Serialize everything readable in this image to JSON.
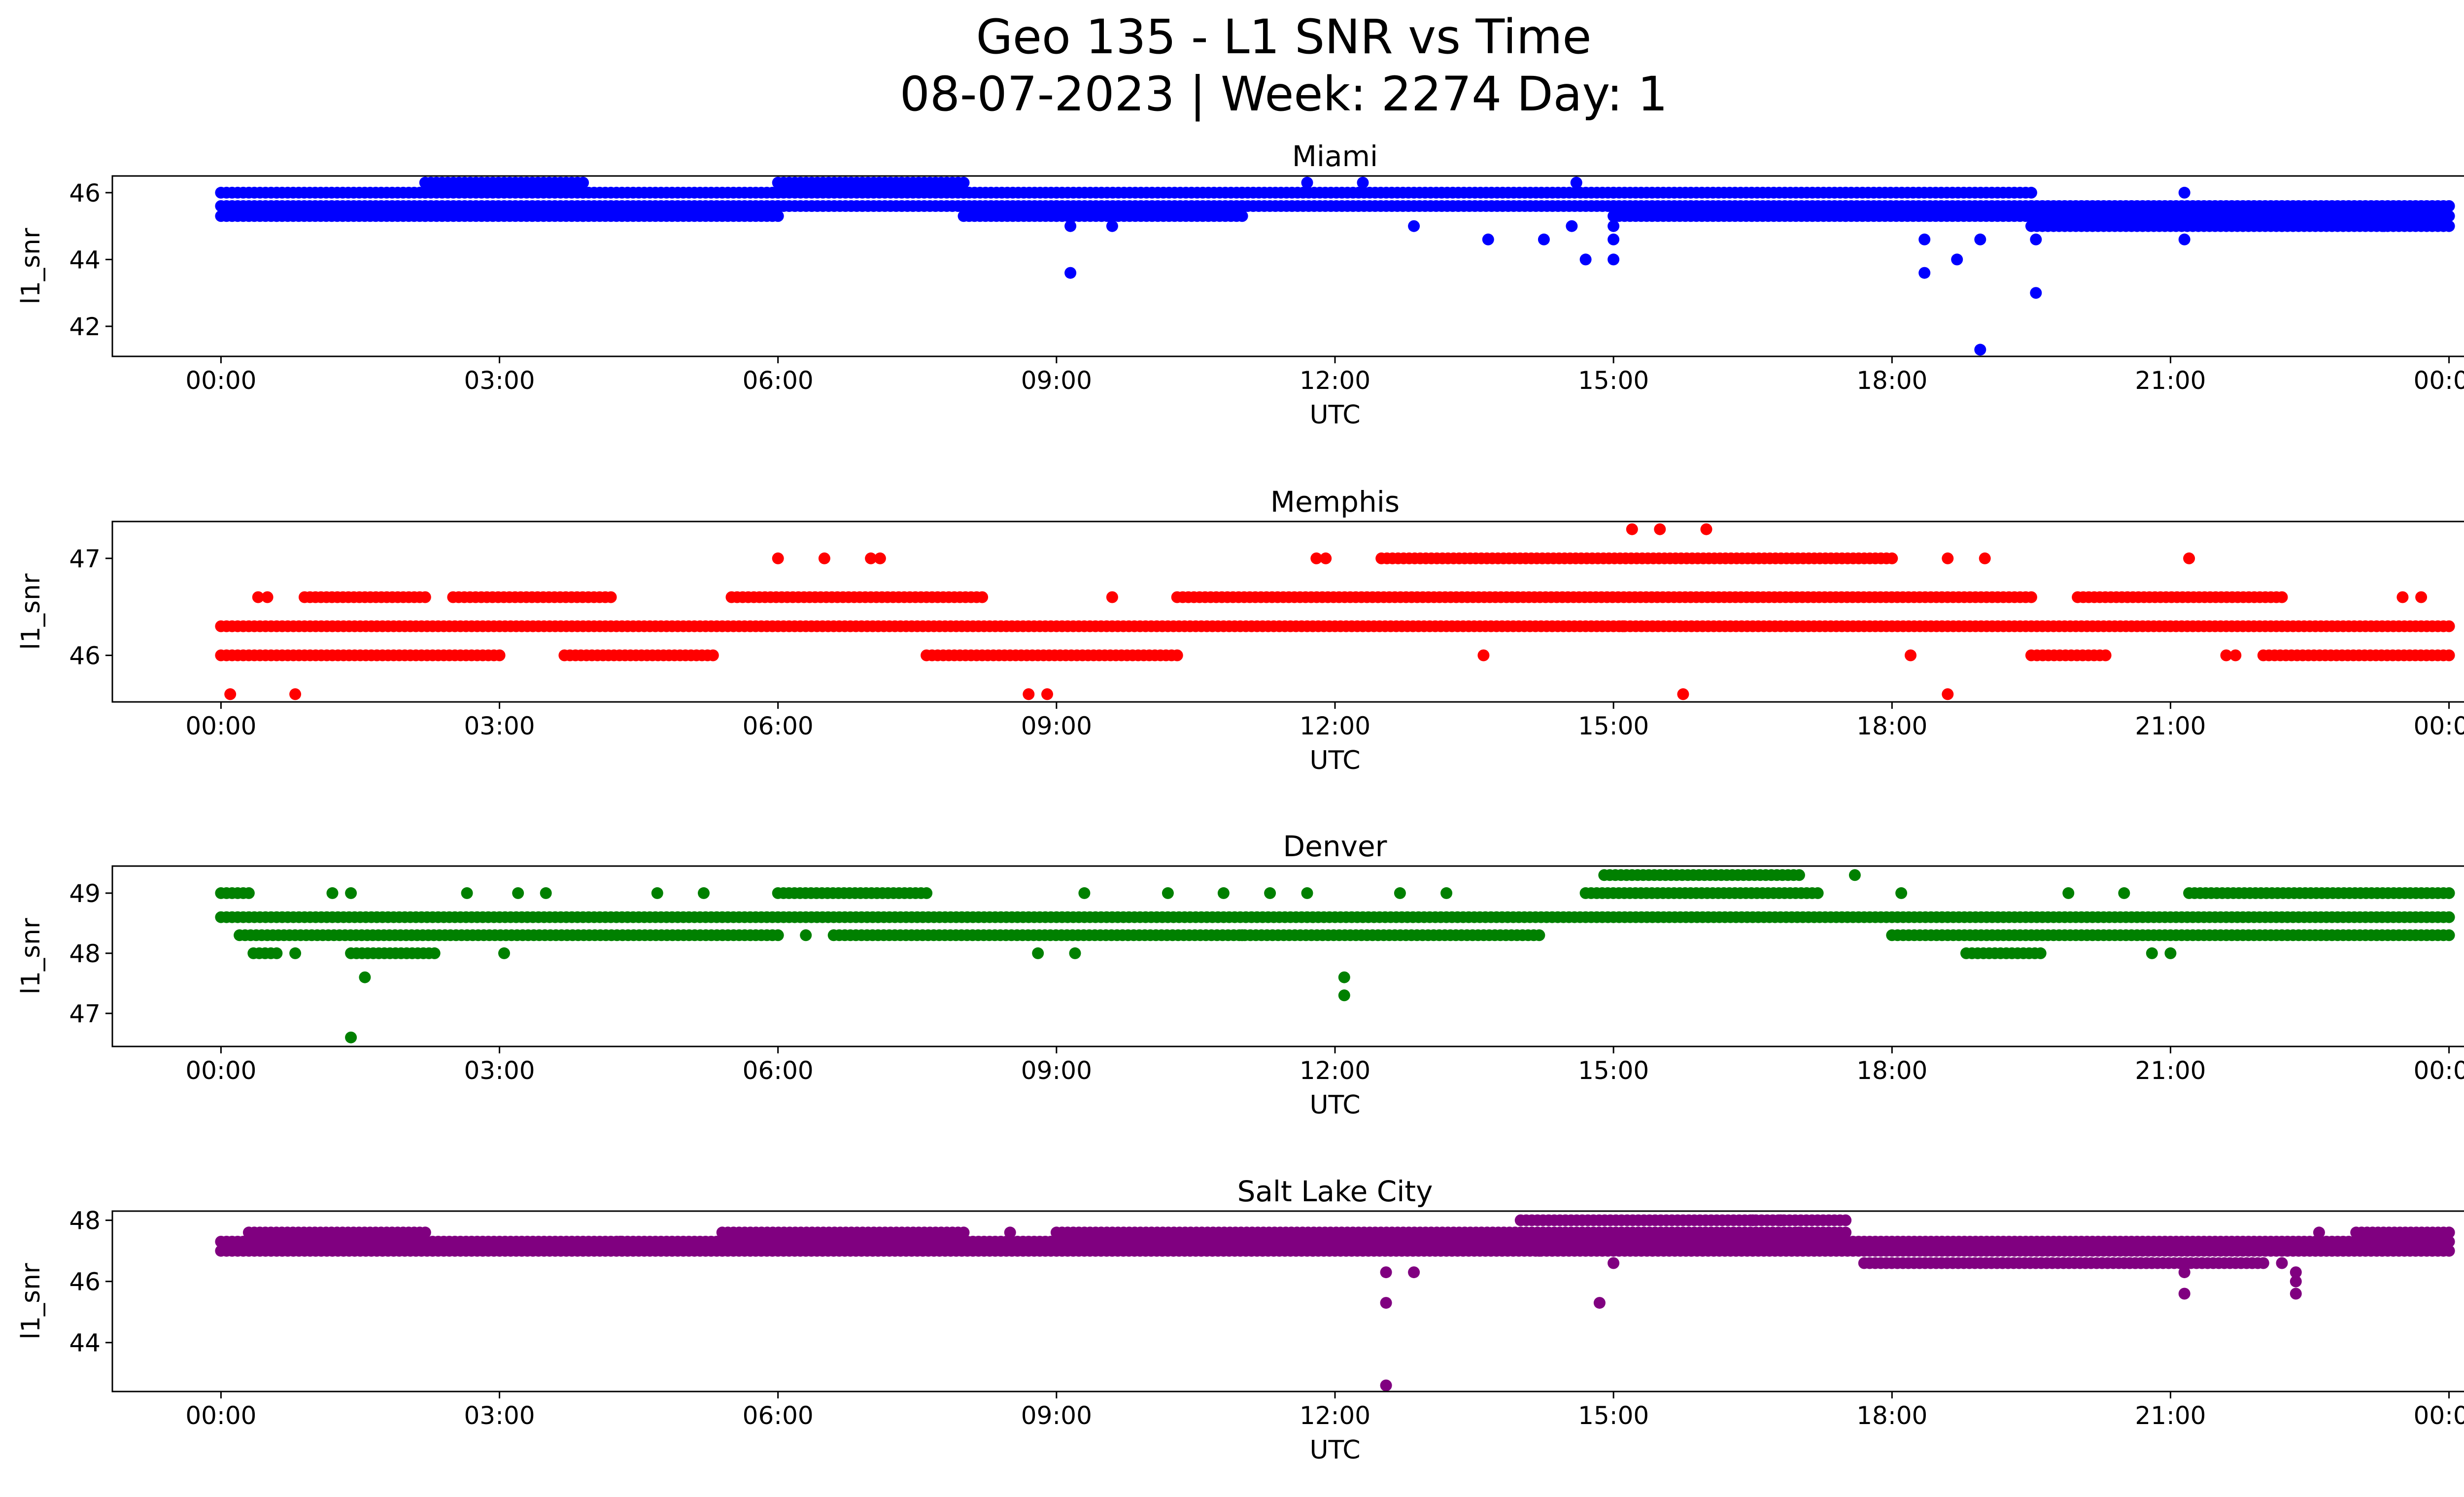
{
  "figure": {
    "title_line1": "Geo 135 - L1 SNR vs Time",
    "title_line2": "08-07-2023 | Week: 2274 Day: 1"
  },
  "chart_data": [
    {
      "type": "scatter",
      "title": "Miami",
      "xlabel": "UTC",
      "ylabel": "l1_snr",
      "color": "#0000ff",
      "x_unit": "hours UTC",
      "xlim": [
        -1.17,
        25.17
      ],
      "ylim": [
        41.1,
        46.5
      ],
      "xticks": [
        0,
        3,
        6,
        9,
        12,
        15,
        18,
        21,
        24
      ],
      "xtick_labels": [
        "00:00",
        "03:00",
        "06:00",
        "09:00",
        "12:00",
        "15:00",
        "18:00",
        "21:00",
        "00:00"
      ],
      "yticks": [
        42,
        44,
        46
      ],
      "bands": [
        {
          "x0": 0.0,
          "x1": 0.6,
          "y": [
            45.3,
            45.6,
            46.0
          ]
        },
        {
          "x0": 0.6,
          "x1": 2.2,
          "y": [
            45.3,
            45.6,
            46.0
          ]
        },
        {
          "x0": 2.2,
          "x1": 3.9,
          "y": [
            45.3,
            45.6,
            46.0,
            46.3
          ]
        },
        {
          "x0": 3.9,
          "x1": 6.0,
          "y": [
            45.3,
            45.6,
            46.0
          ]
        },
        {
          "x0": 6.0,
          "x1": 8.0,
          "y": [
            45.6,
            46.0,
            46.3
          ]
        },
        {
          "x0": 8.0,
          "x1": 9.0,
          "y": [
            45.3,
            45.6,
            46.0
          ]
        },
        {
          "x0": 9.0,
          "x1": 11.0,
          "y": [
            45.3,
            45.6,
            46.0
          ]
        },
        {
          "x0": 11.0,
          "x1": 15.0,
          "y": [
            45.6,
            46.0
          ]
        },
        {
          "x0": 15.0,
          "x1": 17.5,
          "y": [
            45.3,
            45.6,
            46.0
          ]
        },
        {
          "x0": 17.5,
          "x1": 19.5,
          "y": [
            45.3,
            45.6,
            46.0
          ]
        },
        {
          "x0": 19.5,
          "x1": 24.0,
          "y": [
            45.0,
            45.3,
            45.6
          ]
        }
      ],
      "points": [
        [
          9.15,
          43.6
        ],
        [
          9.15,
          45.0
        ],
        [
          9.6,
          45.0
        ],
        [
          12.85,
          45.0
        ],
        [
          13.65,
          44.6
        ],
        [
          14.25,
          44.6
        ],
        [
          14.55,
          45.0
        ],
        [
          14.7,
          44.0
        ],
        [
          15.0,
          44.0
        ],
        [
          15.0,
          44.6
        ],
        [
          15.0,
          45.0
        ],
        [
          18.35,
          43.6
        ],
        [
          18.35,
          44.6
        ],
        [
          18.7,
          44.0
        ],
        [
          18.95,
          41.3
        ],
        [
          18.95,
          44.6
        ],
        [
          19.55,
          44.6
        ],
        [
          19.55,
          43.0
        ],
        [
          21.15,
          44.6
        ],
        [
          21.15,
          46.0
        ],
        [
          22.2,
          45.0
        ],
        [
          23.3,
          45.0
        ],
        [
          11.7,
          46.3
        ],
        [
          12.3,
          46.3
        ],
        [
          14.6,
          46.3
        ]
      ]
    },
    {
      "type": "scatter",
      "title": "Memphis",
      "xlabel": "UTC",
      "ylabel": "l1_snr",
      "color": "#ff0000",
      "x_unit": "hours UTC",
      "xlim": [
        -1.17,
        25.17
      ],
      "ylim": [
        45.52,
        47.38
      ],
      "xticks": [
        0,
        3,
        6,
        9,
        12,
        15,
        18,
        21,
        24
      ],
      "xtick_labels": [
        "00:00",
        "03:00",
        "06:00",
        "09:00",
        "12:00",
        "15:00",
        "18:00",
        "21:00",
        "00:00"
      ],
      "yticks": [
        46,
        47
      ],
      "bands": [
        {
          "x0": 0.0,
          "x1": 24.0,
          "y": [
            46.3
          ]
        },
        {
          "x0": 0.0,
          "x1": 3.0,
          "y": [
            46.0
          ]
        },
        {
          "x0": 3.7,
          "x1": 5.3,
          "y": [
            46.0
          ]
        },
        {
          "x0": 7.6,
          "x1": 10.3,
          "y": [
            46.0
          ]
        },
        {
          "x0": 22.0,
          "x1": 24.0,
          "y": [
            46.0
          ]
        },
        {
          "x0": 19.5,
          "x1": 20.3,
          "y": [
            46.0
          ]
        },
        {
          "x0": 0.9,
          "x1": 2.2,
          "y": [
            46.6
          ]
        },
        {
          "x0": 2.5,
          "x1": 4.2,
          "y": [
            46.6
          ]
        },
        {
          "x0": 5.5,
          "x1": 8.2,
          "y": [
            46.6
          ]
        },
        {
          "x0": 10.3,
          "x1": 19.5,
          "y": [
            46.6
          ]
        },
        {
          "x0": 20.0,
          "x1": 22.2,
          "y": [
            46.6
          ]
        },
        {
          "x0": 12.5,
          "x1": 18.0,
          "y": [
            47.0
          ]
        }
      ],
      "points": [
        [
          0.1,
          45.6
        ],
        [
          0.8,
          45.6
        ],
        [
          0.4,
          46.6
        ],
        [
          0.5,
          46.6
        ],
        [
          8.7,
          45.6
        ],
        [
          8.9,
          45.6
        ],
        [
          6.0,
          47.0
        ],
        [
          6.5,
          47.0
        ],
        [
          7.0,
          47.0
        ],
        [
          7.1,
          47.0
        ],
        [
          11.8,
          47.0
        ],
        [
          11.9,
          47.0
        ],
        [
          13.6,
          46.0
        ],
        [
          15.2,
          47.3
        ],
        [
          15.5,
          47.3
        ],
        [
          16.0,
          47.3
        ],
        [
          15.75,
          45.6
        ],
        [
          18.2,
          46.0
        ],
        [
          18.6,
          45.6
        ],
        [
          18.6,
          47.0
        ],
        [
          19.0,
          47.0
        ],
        [
          21.2,
          47.0
        ],
        [
          21.6,
          46.0
        ],
        [
          21.7,
          46.0
        ],
        [
          15.1,
          46.3
        ],
        [
          9.6,
          46.6
        ],
        [
          23.5,
          46.6
        ],
        [
          23.7,
          46.6
        ]
      ]
    },
    {
      "type": "scatter",
      "title": "Denver",
      "xlabel": "UTC",
      "ylabel": "l1_snr",
      "color": "#008000",
      "x_unit": "hours UTC",
      "xlim": [
        -1.17,
        25.17
      ],
      "ylim": [
        46.45,
        49.45
      ],
      "xticks": [
        0,
        3,
        6,
        9,
        12,
        15,
        18,
        21,
        24
      ],
      "xtick_labels": [
        "00:00",
        "03:00",
        "06:00",
        "09:00",
        "12:00",
        "15:00",
        "18:00",
        "21:00",
        "00:00"
      ],
      "yticks": [
        47,
        48,
        49
      ],
      "bands": [
        {
          "x0": 0.0,
          "x1": 24.0,
          "y": [
            48.6
          ]
        },
        {
          "x0": 0.2,
          "x1": 6.0,
          "y": [
            48.3
          ]
        },
        {
          "x0": 6.6,
          "x1": 14.2,
          "y": [
            48.3
          ]
        },
        {
          "x0": 18.0,
          "x1": 24.0,
          "y": [
            48.3
          ]
        },
        {
          "x0": 6.0,
          "x1": 7.6,
          "y": [
            49.0
          ]
        },
        {
          "x0": 14.7,
          "x1": 17.2,
          "y": [
            49.0
          ]
        },
        {
          "x0": 21.2,
          "x1": 24.0,
          "y": [
            49.0
          ]
        },
        {
          "x0": 14.9,
          "x1": 17.0,
          "y": [
            49.3
          ]
        },
        {
          "x0": 0.0,
          "x1": 0.3,
          "y": [
            49.0
          ]
        },
        {
          "x0": 0.35,
          "x1": 0.6,
          "y": [
            48.0
          ]
        },
        {
          "x0": 1.4,
          "x1": 2.3,
          "y": [
            48.0
          ]
        },
        {
          "x0": 18.8,
          "x1": 19.6,
          "y": [
            48.0
          ]
        }
      ],
      "points": [
        [
          1.4,
          46.6
        ],
        [
          1.55,
          47.6
        ],
        [
          12.1,
          47.6
        ],
        [
          12.1,
          47.3
        ],
        [
          0.8,
          48.0
        ],
        [
          3.05,
          48.0
        ],
        [
          8.8,
          48.0
        ],
        [
          9.2,
          48.0
        ],
        [
          20.8,
          48.0
        ],
        [
          21.0,
          48.0
        ],
        [
          1.2,
          49.0
        ],
        [
          1.4,
          49.0
        ],
        [
          2.65,
          49.0
        ],
        [
          3.2,
          49.0
        ],
        [
          3.5,
          49.0
        ],
        [
          4.7,
          49.0
        ],
        [
          5.2,
          49.0
        ],
        [
          9.3,
          49.0
        ],
        [
          10.2,
          49.0
        ],
        [
          10.8,
          49.0
        ],
        [
          11.3,
          49.0
        ],
        [
          11.7,
          49.0
        ],
        [
          12.7,
          49.0
        ],
        [
          13.2,
          49.0
        ],
        [
          17.6,
          49.3
        ],
        [
          18.1,
          49.0
        ],
        [
          19.9,
          49.0
        ],
        [
          20.5,
          49.0
        ],
        [
          6.3,
          48.3
        ],
        [
          11.0,
          48.3
        ]
      ]
    },
    {
      "type": "scatter",
      "title": "Salt Lake City",
      "xlabel": "UTC",
      "ylabel": "l1_snr",
      "color": "#800080",
      "x_unit": "hours UTC",
      "xlim": [
        -1.17,
        25.17
      ],
      "ylim": [
        42.4,
        48.3
      ],
      "xticks": [
        0,
        3,
        6,
        9,
        12,
        15,
        18,
        21,
        24
      ],
      "xtick_labels": [
        "00:00",
        "03:00",
        "06:00",
        "09:00",
        "12:00",
        "15:00",
        "18:00",
        "21:00",
        "00:00"
      ],
      "yticks": [
        44,
        46,
        48
      ],
      "bands": [
        {
          "x0": 0.0,
          "x1": 24.0,
          "y": [
            47.0,
            47.3
          ]
        },
        {
          "x0": 0.3,
          "x1": 2.2,
          "y": [
            47.6
          ]
        },
        {
          "x0": 5.4,
          "x1": 8.0,
          "y": [
            47.6
          ]
        },
        {
          "x0": 9.0,
          "x1": 14.0,
          "y": [
            47.6
          ]
        },
        {
          "x0": 14.0,
          "x1": 17.5,
          "y": [
            47.6,
            48.0
          ]
        },
        {
          "x0": 17.7,
          "x1": 20.8,
          "y": [
            46.6
          ]
        },
        {
          "x0": 20.5,
          "x1": 22.0,
          "y": [
            46.6
          ]
        },
        {
          "x0": 23.0,
          "x1": 24.0,
          "y": [
            47.6
          ]
        }
      ],
      "points": [
        [
          12.55,
          42.6
        ],
        [
          12.55,
          45.3
        ],
        [
          12.55,
          46.3
        ],
        [
          12.85,
          46.3
        ],
        [
          14.85,
          45.3
        ],
        [
          14.2,
          47.0
        ],
        [
          15.0,
          46.6
        ],
        [
          21.15,
          45.6
        ],
        [
          21.15,
          46.3
        ],
        [
          22.35,
          45.6
        ],
        [
          22.35,
          46.0
        ],
        [
          22.35,
          46.3
        ],
        [
          22.2,
          46.6
        ],
        [
          16.5,
          48.0
        ],
        [
          16.8,
          48.0
        ],
        [
          17.0,
          47.6
        ],
        [
          8.5,
          47.6
        ],
        [
          4.3,
          47.3
        ],
        [
          22.6,
          47.6
        ],
        [
          24.0,
          47.6
        ]
      ]
    }
  ]
}
